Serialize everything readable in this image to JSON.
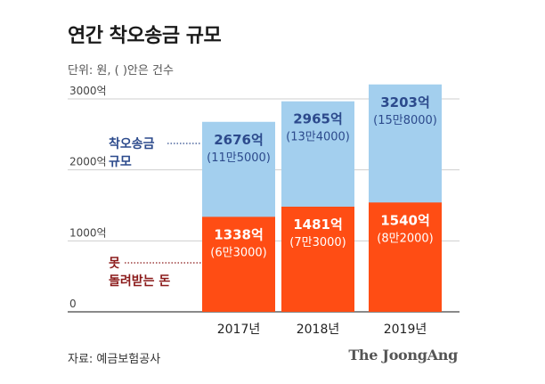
{
  "title": "연간 착오송금 규모",
  "unit_note": "단위: 원, ( )안은 건수",
  "source": "자료: 예금보험공사",
  "brand": "The JoongAng",
  "colors": {
    "total": "#a3cfee",
    "unrecovered": "#ff4d14",
    "total_text": "#2c4a8c",
    "unrecovered_text": "#ffffff",
    "grid": "#cfcfcf",
    "legend_total": "#2c4a8c",
    "legend_unrecovered": "#8b1a1a"
  },
  "chart_data": {
    "type": "bar",
    "categories": [
      "2017년",
      "2018년",
      "2019년"
    ],
    "ylim": [
      0,
      3200
    ],
    "y_ticks": [
      0,
      1000,
      2000,
      3000
    ],
    "y_tick_labels": [
      "0",
      "1000억",
      "2000억",
      "3000억"
    ],
    "grid": true,
    "series": [
      {
        "name": "착오송금 규모",
        "values": [
          2676,
          2965,
          3203
        ],
        "value_labels": [
          "2676억",
          "2965억",
          "3203억"
        ],
        "count_labels": [
          "(11만5000)",
          "(13만4000)",
          "(15만8000)"
        ]
      },
      {
        "name": "못 돌려받는 돈",
        "values": [
          1338,
          1481,
          1540
        ],
        "value_labels": [
          "1338억",
          "1481억",
          "1540억"
        ],
        "count_labels": [
          "(6만3000)",
          "(7만3000)",
          "(8만2000)"
        ]
      }
    ],
    "legend_labels": {
      "total": [
        "착오송금",
        "규모"
      ],
      "unrecovered": [
        "못",
        "돌려받는 돈"
      ]
    }
  }
}
